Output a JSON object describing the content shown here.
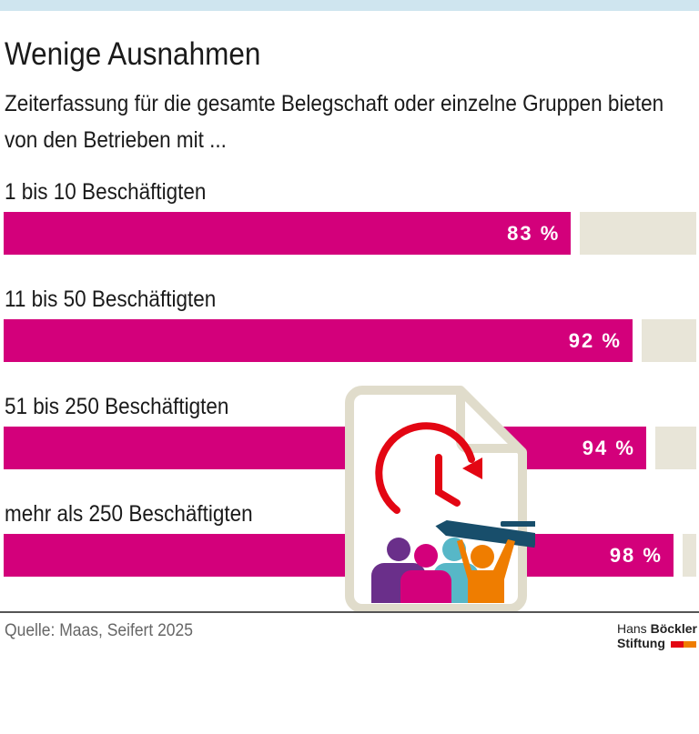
{
  "title": "Wenige Ausnahmen",
  "subtitle": "Zeiterfassung für die gesamte Belegschaft oder einzelne Gruppen bieten von den Betrieben mit ...",
  "source": "Quelle: Maas, Seifert 2025",
  "logo": {
    "line1a": "Hans ",
    "line1b": "Böckler",
    "line2": "Stiftung"
  },
  "colors": {
    "bar": "#d3007b",
    "track": "#e8e5d8",
    "topband": "#cfe5ef"
  },
  "chart_data": {
    "type": "bar",
    "orientation": "horizontal",
    "categories": [
      "1 bis 10 Beschäftigten",
      "11 bis 50 Beschäftigten",
      "51 bis 250 Beschäftigten",
      "mehr als 250 Beschäftigten"
    ],
    "values": [
      83,
      92,
      94,
      98
    ],
    "labels": [
      "83 %",
      "92 %",
      "94 %",
      "98 %"
    ],
    "xlim": [
      0,
      100
    ],
    "grid": false
  }
}
